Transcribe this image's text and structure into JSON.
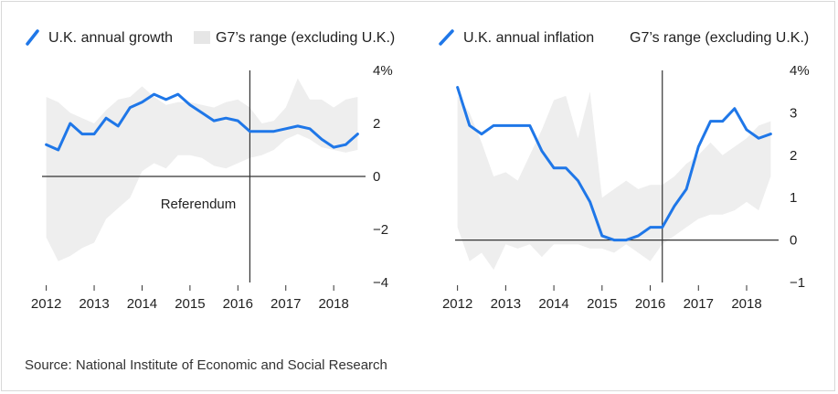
{
  "colors": {
    "line": "#1f77e8",
    "range": "#eeeeee",
    "axis": "#333333",
    "text": "#222222"
  },
  "source": "Source: National Institute of Economic and Social Research",
  "chart_data": [
    {
      "type": "line",
      "title": "",
      "legend": {
        "line_label": "U.K. annual growth",
        "range_label": "G7’s range (excluding U.K.)",
        "placement": "top"
      },
      "x_ticks": [
        2012,
        2013,
        2014,
        2015,
        2016,
        2017,
        2018
      ],
      "x_tick_labels": [
        "2012",
        "2013",
        "2014",
        "2015",
        "2016",
        "2017",
        "2018"
      ],
      "xlim": [
        2011.95,
        2018.55
      ],
      "y_ticks": [
        -4,
        -2,
        0,
        2,
        4
      ],
      "y_tick_labels": [
        "−4",
        "−2",
        "0",
        "2",
        "4%"
      ],
      "ylim": [
        -4,
        4
      ],
      "marker": {
        "x": 2016.25,
        "label": "Referendum"
      },
      "series": [
        {
          "name": "U.K. annual growth",
          "x": [
            2012,
            2012.25,
            2012.5,
            2012.75,
            2013,
            2013.25,
            2013.5,
            2013.75,
            2014,
            2014.25,
            2014.5,
            2014.75,
            2015,
            2015.25,
            2015.5,
            2015.75,
            2016,
            2016.25,
            2016.5,
            2016.75,
            2017,
            2017.25,
            2017.5,
            2017.75,
            2018,
            2018.25,
            2018.5
          ],
          "y": [
            1.2,
            1.0,
            2.0,
            1.6,
            1.6,
            2.2,
            1.9,
            2.6,
            2.8,
            3.1,
            2.9,
            3.1,
            2.7,
            2.4,
            2.1,
            2.2,
            2.1,
            1.7,
            1.7,
            1.7,
            1.8,
            1.9,
            1.8,
            1.4,
            1.1,
            1.2,
            1.6
          ]
        }
      ],
      "range": {
        "name": "G7’s range (excluding U.K.)",
        "x": [
          2012,
          2012.25,
          2012.5,
          2012.75,
          2013,
          2013.25,
          2013.5,
          2013.75,
          2014,
          2014.25,
          2014.5,
          2014.75,
          2015,
          2015.25,
          2015.5,
          2015.75,
          2016,
          2016.25,
          2016.5,
          2016.75,
          2017,
          2017.25,
          2017.5,
          2017.75,
          2018,
          2018.25,
          2018.5
        ],
        "high": [
          3.0,
          2.8,
          2.4,
          2.2,
          2.0,
          2.5,
          2.9,
          3.0,
          3.4,
          3.0,
          2.7,
          2.8,
          2.8,
          2.7,
          2.6,
          2.8,
          2.9,
          2.6,
          2.0,
          2.1,
          2.6,
          3.7,
          2.9,
          2.9,
          2.6,
          2.9,
          3.0
        ],
        "low": [
          -2.3,
          -3.2,
          -3.0,
          -2.7,
          -2.5,
          -1.6,
          -1.2,
          -0.8,
          0.2,
          0.5,
          0.3,
          0.8,
          0.8,
          0.7,
          0.4,
          0.3,
          0.5,
          0.7,
          0.8,
          1.0,
          1.4,
          1.6,
          1.4,
          1.1,
          1.0,
          0.9,
          1.0
        ]
      }
    },
    {
      "type": "line",
      "title": "",
      "legend": {
        "line_label": "U.K. annual inflation",
        "range_label": "G7’s range (excluding U.K.)",
        "placement": "top"
      },
      "x_ticks": [
        2012,
        2013,
        2014,
        2015,
        2016,
        2017,
        2018
      ],
      "x_tick_labels": [
        "2012",
        "2013",
        "2014",
        "2015",
        "2016",
        "2017",
        "2018"
      ],
      "xlim": [
        2011.95,
        2018.55
      ],
      "y_ticks": [
        -1,
        0,
        1,
        2,
        3,
        4
      ],
      "y_tick_labels": [
        "−1",
        "0",
        "1",
        "2",
        "3",
        "4%"
      ],
      "ylim": [
        -1,
        4
      ],
      "marker": {
        "x": 2016.25,
        "label": ""
      },
      "series": [
        {
          "name": "U.K. annual inflation",
          "x": [
            2012,
            2012.25,
            2012.5,
            2012.75,
            2013,
            2013.25,
            2013.5,
            2013.75,
            2014,
            2014.25,
            2014.5,
            2014.75,
            2015,
            2015.25,
            2015.5,
            2015.75,
            2016,
            2016.25,
            2016.5,
            2016.75,
            2017,
            2017.25,
            2017.5,
            2017.75,
            2018,
            2018.25,
            2018.5
          ],
          "y": [
            3.6,
            2.7,
            2.5,
            2.7,
            2.7,
            2.7,
            2.7,
            2.1,
            1.7,
            1.7,
            1.4,
            0.9,
            0.1,
            0.0,
            0.0,
            0.1,
            0.3,
            0.3,
            0.8,
            1.2,
            2.2,
            2.8,
            2.8,
            3.1,
            2.6,
            2.4,
            2.5
          ]
        }
      ],
      "range": {
        "name": "G7’s range (excluding U.K.)",
        "x": [
          2012,
          2012.25,
          2012.5,
          2012.75,
          2013,
          2013.25,
          2013.5,
          2013.75,
          2014,
          2014.25,
          2014.5,
          2014.75,
          2015,
          2015.25,
          2015.5,
          2015.75,
          2016,
          2016.25,
          2016.5,
          2016.75,
          2017,
          2017.25,
          2017.5,
          2017.75,
          2018,
          2018.25,
          2018.5
        ],
        "high": [
          3.4,
          3.0,
          2.3,
          1.5,
          1.6,
          1.4,
          2.0,
          2.6,
          3.3,
          3.4,
          2.4,
          3.5,
          1.0,
          1.2,
          1.4,
          1.2,
          1.3,
          1.3,
          1.5,
          1.8,
          2.0,
          2.3,
          2.0,
          2.2,
          2.4,
          2.7,
          2.8
        ],
        "low": [
          0.3,
          -0.5,
          -0.3,
          -0.7,
          -0.1,
          -0.2,
          -0.1,
          -0.4,
          -0.1,
          -0.1,
          -0.1,
          -0.2,
          -0.2,
          -0.3,
          -0.1,
          -0.3,
          -0.5,
          -0.1,
          0.1,
          0.3,
          0.5,
          0.6,
          0.6,
          0.7,
          0.9,
          0.7,
          1.5
        ]
      }
    }
  ]
}
